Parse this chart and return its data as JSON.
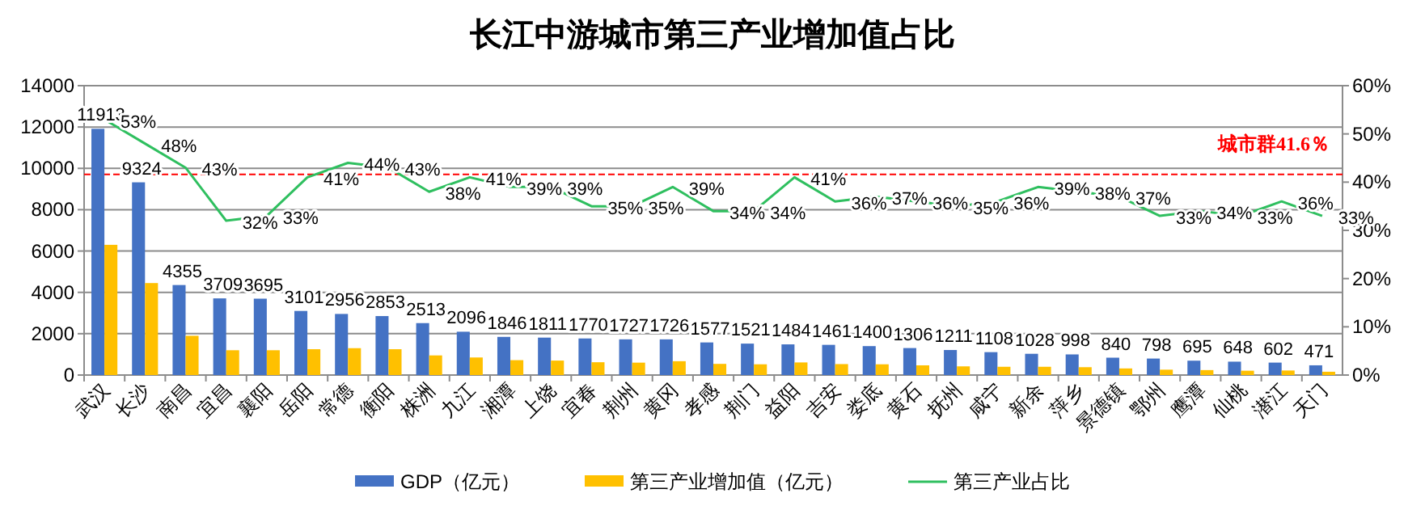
{
  "chart_data": {
    "type": "bar",
    "title": "长江中游城市第三产业增加值占比",
    "categories": [
      "武汉",
      "长沙",
      "南昌",
      "宜昌",
      "襄阳",
      "岳阳",
      "常德",
      "衡阳",
      "株洲",
      "九江",
      "湘潭",
      "上饶",
      "宜春",
      "荆州",
      "黄冈",
      "孝感",
      "荆门",
      "益阳",
      "吉安",
      "娄底",
      "黄石",
      "抚州",
      "咸宁",
      "新余",
      "萍乡",
      "景德镇",
      "鄂州",
      "鹰潭",
      "仙桃",
      "潜江",
      "天门"
    ],
    "series": [
      {
        "name": "GDP（亿元）",
        "color": "#4472c4",
        "values": [
          11913,
          9324,
          4355,
          3709,
          3695,
          3101,
          2956,
          2853,
          2513,
          2096,
          1846,
          1811,
          1770,
          1727,
          1726,
          1577,
          1521,
          1484,
          1461,
          1400,
          1306,
          1211,
          1108,
          1028,
          998,
          840,
          798,
          695,
          648,
          602,
          471
        ],
        "value_labels": [
          "11913",
          "9324",
          "4355",
          "3709",
          "3695",
          "3101",
          "2956",
          "2853",
          "2513",
          "2096",
          "1846",
          "1811",
          "1770",
          "1727",
          "1726",
          "1577",
          "1521",
          "1484",
          "1461",
          "1400",
          "1306",
          "1211",
          "1108",
          "1028",
          "998",
          "840",
          "798",
          "695",
          "648",
          "602",
          "471"
        ]
      },
      {
        "name": "第三产业增加值（亿元）",
        "color": "#ffc000",
        "values": [
          6300,
          4450,
          1900,
          1200,
          1200,
          1250,
          1300,
          1250,
          950,
          850,
          720,
          700,
          620,
          600,
          670,
          540,
          520,
          610,
          530,
          520,
          470,
          420,
          400,
          400,
          380,
          320,
          260,
          240,
          210,
          220,
          160
        ]
      },
      {
        "name": "第三产业占比",
        "type": "line",
        "axis": "y2",
        "color": "#2fbf5f",
        "values": [
          53,
          48,
          43,
          32,
          33,
          41,
          44,
          43,
          38,
          41,
          39,
          39,
          35,
          35,
          39,
          34,
          34,
          41,
          36,
          37,
          36,
          35,
          36,
          39,
          38,
          37,
          33,
          34,
          33,
          36,
          33
        ],
        "value_labels": [
          "53%",
          "48%",
          "43%",
          "32%",
          "33%",
          "41%",
          "44%",
          "43%",
          "38%",
          "41%",
          "39%",
          "39%",
          "35%",
          "35%",
          "39%",
          "34%",
          "34%",
          "41%",
          "36%",
          "37%",
          "36%",
          "35%",
          "36%",
          "39%",
          "38%",
          "37%",
          "33%",
          "34%",
          "33%",
          "36%",
          "33%"
        ]
      }
    ],
    "ylim": [
      0,
      14000
    ],
    "yticks": [
      0,
      2000,
      4000,
      6000,
      8000,
      10000,
      12000,
      14000
    ],
    "y2lim": [
      0,
      60
    ],
    "y2ticks": [
      {
        "value": 0,
        "label": "0%"
      },
      {
        "value": 10,
        "label": "10%"
      },
      {
        "value": 20,
        "label": "20%"
      },
      {
        "value": 30,
        "label": "30%"
      },
      {
        "value": 40,
        "label": "40%"
      },
      {
        "value": 50,
        "label": "50%"
      },
      {
        "value": 60,
        "label": "60%"
      }
    ],
    "ref_lines": [
      {
        "axis": "y2",
        "value": 41.6,
        "label": "城市群41.6％",
        "color": "#ff0000",
        "line_style": "dashed"
      }
    ],
    "grid": "y",
    "legend": "bottom",
    "marker": "none",
    "line_style": "solid"
  }
}
